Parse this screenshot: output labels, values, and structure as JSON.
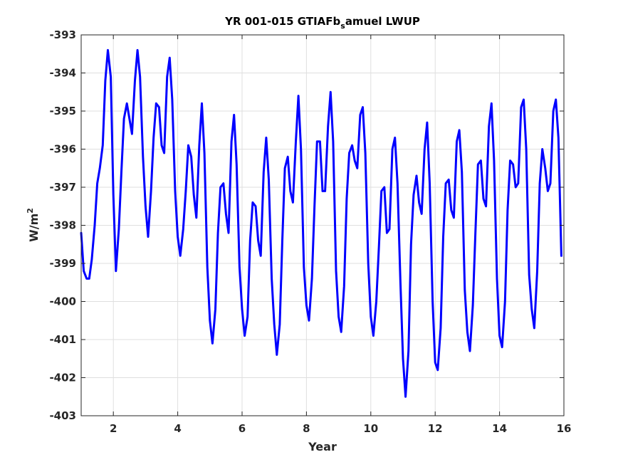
{
  "chart_data": {
    "type": "line",
    "title": "YR 001-015 GTIAFb",
    "title_subscript": "s",
    "title_suffix": "amuel LWUP",
    "xlabel": "Year",
    "ylabel": "W/m",
    "ylabel_superscript": "2",
    "xlim": [
      1,
      16
    ],
    "ylim": [
      -403,
      -393
    ],
    "xticks": [
      2,
      4,
      6,
      8,
      10,
      12,
      14,
      16
    ],
    "xtick_labels": [
      "2",
      "4",
      "6",
      "8",
      "10",
      "12",
      "14",
      "16"
    ],
    "yticks": [
      -403,
      -402,
      -401,
      -400,
      -399,
      -398,
      -397,
      -396,
      -395,
      -394,
      -393
    ],
    "ytick_labels": [
      "-403",
      "-402",
      "-401",
      "-400",
      "-399",
      "-398",
      "-397",
      "-396",
      "-395",
      "-394",
      "-393"
    ],
    "grid": true,
    "line_color": "#0000ff",
    "series": [
      {
        "x": [
          1.0,
          1.08,
          1.17,
          1.25,
          1.33,
          1.42,
          1.5,
          1.58,
          1.67,
          1.75,
          1.83,
          1.92,
          2.0,
          2.08,
          2.17,
          2.25,
          2.33,
          2.42,
          2.5,
          2.58,
          2.67,
          2.75,
          2.83,
          2.92,
          3.0,
          3.08,
          3.17,
          3.25,
          3.33,
          3.42,
          3.5,
          3.58,
          3.67,
          3.75,
          3.83,
          3.92,
          4.0,
          4.08,
          4.17,
          4.25,
          4.33,
          4.42,
          4.5,
          4.58,
          4.67,
          4.75,
          4.83,
          4.92,
          5.0,
          5.08,
          5.17,
          5.25,
          5.33,
          5.42,
          5.5,
          5.58,
          5.67,
          5.75,
          5.83,
          5.92,
          6.0,
          6.08,
          6.17,
          6.25,
          6.33,
          6.42,
          6.5,
          6.58,
          6.67,
          6.75,
          6.83,
          6.92,
          7.0,
          7.08,
          7.17,
          7.25,
          7.33,
          7.42,
          7.5,
          7.58,
          7.67,
          7.75,
          7.83,
          7.92,
          8.0,
          8.08,
          8.17,
          8.25,
          8.33,
          8.42,
          8.5,
          8.58,
          8.67,
          8.75,
          8.83,
          8.92,
          9.0,
          9.08,
          9.17,
          9.25,
          9.33,
          9.42,
          9.5,
          9.58,
          9.67,
          9.75,
          9.83,
          9.92,
          10.0,
          10.08,
          10.17,
          10.25,
          10.33,
          10.42,
          10.5,
          10.58,
          10.67,
          10.75,
          10.83,
          10.92,
          11.0,
          11.08,
          11.17,
          11.25,
          11.33,
          11.42,
          11.5,
          11.58,
          11.67,
          11.75,
          11.83,
          11.92,
          12.0,
          12.08,
          12.17,
          12.25,
          12.33,
          12.42,
          12.5,
          12.58,
          12.67,
          12.75,
          12.83,
          12.92,
          13.0,
          13.08,
          13.17,
          13.25,
          13.33,
          13.42,
          13.5,
          13.58,
          13.67,
          13.75,
          13.83,
          13.92,
          14.0,
          14.08,
          14.17,
          14.25,
          14.33,
          14.42,
          14.5,
          14.58,
          14.67,
          14.75,
          14.83,
          14.92,
          15.0,
          15.08,
          15.17,
          15.25,
          15.33,
          15.42,
          15.5,
          15.58,
          15.67,
          15.75,
          15.83,
          15.92
        ],
        "y": [
          -398.2,
          -399.2,
          -399.4,
          -399.4,
          -398.9,
          -398.0,
          -396.9,
          -396.5,
          -395.9,
          -394.2,
          -393.4,
          -394.1,
          -397.2,
          -399.2,
          -398.1,
          -396.6,
          -395.2,
          -394.8,
          -395.2,
          -395.6,
          -394.2,
          -393.4,
          -394.1,
          -396.2,
          -397.5,
          -398.3,
          -397.1,
          -395.7,
          -394.8,
          -394.9,
          -395.9,
          -396.1,
          -394.1,
          -393.6,
          -394.7,
          -397.1,
          -398.3,
          -398.8,
          -398.1,
          -397.1,
          -395.9,
          -396.2,
          -397.2,
          -397.8,
          -395.9,
          -394.8,
          -396.1,
          -399.1,
          -400.5,
          -401.1,
          -400.2,
          -398.2,
          -397.0,
          -396.9,
          -397.7,
          -398.2,
          -395.8,
          -395.1,
          -396.4,
          -399.1,
          -400.2,
          -400.9,
          -400.4,
          -398.4,
          -397.4,
          -397.5,
          -398.4,
          -398.8,
          -396.6,
          -395.7,
          -396.8,
          -399.4,
          -400.6,
          -401.4,
          -400.6,
          -398.4,
          -396.5,
          -396.2,
          -397.1,
          -397.4,
          -395.8,
          -394.6,
          -396.0,
          -399.1,
          -400.1,
          -400.5,
          -399.4,
          -397.5,
          -395.8,
          -395.8,
          -397.1,
          -397.1,
          -395.4,
          -394.5,
          -395.8,
          -399.2,
          -400.4,
          -400.8,
          -399.6,
          -397.3,
          -396.1,
          -395.9,
          -396.3,
          -396.5,
          -395.1,
          -394.9,
          -396.1,
          -399.0,
          -400.4,
          -400.9,
          -400.0,
          -398.6,
          -397.1,
          -397.0,
          -398.2,
          -398.1,
          -396.0,
          -395.7,
          -396.9,
          -399.5,
          -401.5,
          -402.5,
          -401.3,
          -398.5,
          -397.2,
          -396.7,
          -397.4,
          -397.7,
          -396.0,
          -395.3,
          -396.9,
          -400.0,
          -401.6,
          -401.8,
          -400.7,
          -398.3,
          -396.9,
          -396.8,
          -397.6,
          -397.8,
          -395.8,
          -395.5,
          -396.6,
          -399.7,
          -400.8,
          -401.3,
          -400.1,
          -398.2,
          -396.4,
          -396.3,
          -397.3,
          -397.5,
          -395.4,
          -394.8,
          -396.3,
          -399.4,
          -400.9,
          -401.2,
          -400.0,
          -397.6,
          -396.3,
          -396.4,
          -397.0,
          -396.9,
          -394.9,
          -394.7,
          -396.0,
          -399.3,
          -400.2,
          -400.7,
          -399.2,
          -396.9,
          -396.0,
          -396.5,
          -397.1,
          -396.9,
          -395.0,
          -394.7,
          -395.7,
          -398.8
        ]
      }
    ]
  }
}
